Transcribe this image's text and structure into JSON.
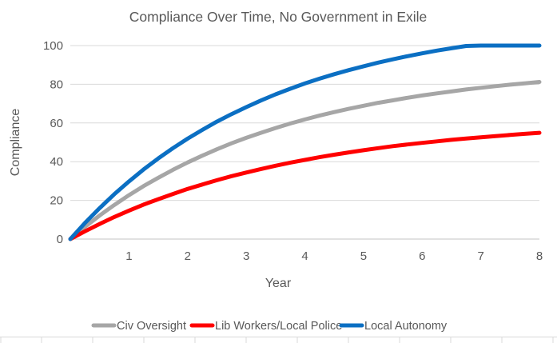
{
  "chart_data": {
    "type": "line",
    "title": "Compliance Over Time, No Government in Exile",
    "xlabel": "Year",
    "ylabel": "Compliance",
    "xlim": [
      0,
      8
    ],
    "ylim": [
      0,
      100
    ],
    "x_ticks": [
      1,
      2,
      3,
      4,
      5,
      6,
      7,
      8
    ],
    "y_ticks": [
      0,
      20,
      40,
      60,
      80,
      100
    ],
    "grid": "horizontal-only",
    "legend_position": "bottom",
    "x_start": 0,
    "x_step": 0.25,
    "series": [
      {
        "name": "Civ Oversight",
        "color": "#A6A6A6",
        "values": [
          0,
          6.3,
          12.2,
          17.6,
          22.7,
          27.4,
          31.7,
          35.8,
          39.6,
          43.1,
          46.4,
          49.5,
          52.3,
          54.9,
          57.4,
          59.7,
          61.8,
          63.8,
          65.6,
          67.3,
          68.9,
          70.4,
          71.7,
          73.0,
          74.2,
          75.3,
          76.3,
          77.3,
          78.2,
          79.0,
          79.8,
          80.5,
          81.2
        ]
      },
      {
        "name": "Lib Workers/Local Police",
        "color": "#FF0000",
        "values": [
          0,
          4.0,
          7.8,
          11.4,
          14.7,
          17.8,
          20.6,
          23.3,
          25.9,
          28.2,
          30.4,
          32.5,
          34.4,
          36.2,
          37.9,
          39.5,
          40.9,
          42.3,
          43.6,
          44.8,
          45.9,
          47.0,
          48.0,
          48.9,
          49.7,
          50.5,
          51.3,
          52.0,
          52.6,
          53.2,
          53.8,
          54.4,
          54.9
        ]
      },
      {
        "name": "Local Autonomy",
        "color": "#0B6FC3",
        "values": [
          0,
          8.3,
          16.0,
          23.2,
          29.8,
          36.0,
          41.7,
          47.0,
          51.9,
          56.4,
          60.7,
          64.6,
          68.2,
          71.6,
          74.8,
          77.7,
          80.4,
          82.9,
          85.2,
          87.3,
          89.3,
          91.2,
          92.9,
          94.5,
          96.0,
          97.4,
          98.6,
          99.8,
          100,
          100,
          100,
          100,
          100
        ]
      }
    ]
  },
  "styles": {
    "text_color": "#595959",
    "gridline_color": "#D9D9D9",
    "axis_line_color": "#C3C3C3",
    "line_width": 5
  }
}
